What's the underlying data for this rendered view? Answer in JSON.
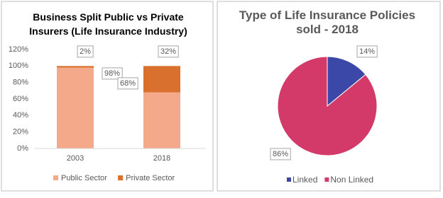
{
  "chart_data": [
    {
      "type": "stacked-bar",
      "title": "Business Split Public vs Private Insurers (Life Insurance Industry)",
      "categories": [
        "2003",
        "2018"
      ],
      "series": [
        {
          "name": "Public Sector",
          "color": "#f4a98a",
          "values": [
            98,
            68
          ],
          "value_labels": [
            "98%",
            "68%"
          ]
        },
        {
          "name": "Private Sector",
          "color": "#d9702e",
          "values": [
            2,
            32
          ],
          "value_labels": [
            "2%",
            "32%"
          ]
        }
      ],
      "ylim": [
        0,
        120
      ],
      "yticks": [
        {
          "value": 0,
          "label": "0%"
        },
        {
          "value": 20,
          "label": "20%"
        },
        {
          "value": 40,
          "label": "40%"
        },
        {
          "value": 60,
          "label": "60%"
        },
        {
          "value": 80,
          "label": "80%"
        },
        {
          "value": 100,
          "label": "100%"
        },
        {
          "value": 120,
          "label": "120%"
        }
      ],
      "grid": false,
      "legend": "bottom"
    },
    {
      "type": "pie",
      "title": "Type of Life Insurance Policies sold - 2018",
      "categories": [
        "Linked",
        "Non Linked"
      ],
      "values": [
        14,
        86
      ],
      "value_labels": [
        "14%",
        "86%"
      ],
      "colors": [
        "#3b48a8",
        "#d33a6a"
      ],
      "legend": "bottom"
    }
  ]
}
